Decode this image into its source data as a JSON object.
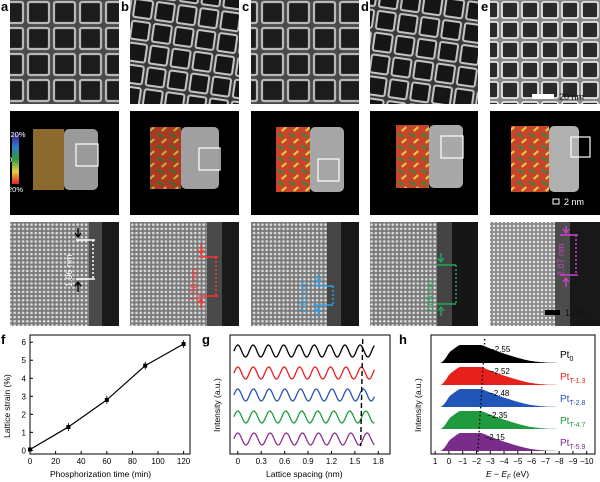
{
  "panel_labels": [
    "a",
    "b",
    "c",
    "d",
    "e",
    "f",
    "g",
    "h"
  ],
  "row1_scalebar": "20 nm",
  "row2_scalebar": "2 nm",
  "row3_scalebar": "1 nm",
  "strain_colorbar": {
    "top": "-20%",
    "mid": "0",
    "bottom": "20%"
  },
  "spacing_labels": [
    {
      "text": "1.96 nm",
      "color": "#ffffff"
    },
    {
      "text": "1.98 nm",
      "color": "#ff3030"
    },
    {
      "text": "2.01 nm",
      "color": "#2aa0f0"
    },
    {
      "text": "2.05 nm",
      "color": "#22aa55"
    },
    {
      "text": "2.07 nm",
      "color": "#cc44cc"
    }
  ],
  "chart_data": [
    {
      "type": "line",
      "panel": "f",
      "xlabel": "Phosphorization time (min)",
      "ylabel": "Lattice strain (%)",
      "x": [
        0,
        30,
        60,
        90,
        120
      ],
      "y": [
        0.05,
        1.3,
        2.8,
        4.7,
        5.9
      ],
      "xticks": [
        "0",
        "20",
        "40",
        "60",
        "80",
        "100",
        "120"
      ],
      "yticks": [
        "0",
        "1",
        "2",
        "3",
        "4",
        "5",
        "6"
      ],
      "xlim": [
        0,
        125
      ],
      "ylim": [
        -0.2,
        6.4
      ]
    },
    {
      "type": "line",
      "panel": "g",
      "xlabel": "Lattice spacing (nm)",
      "ylabel": "Intensity (a.u.)",
      "xticks": [
        "0",
        "0.3",
        "0.6",
        "0.9",
        "1.2",
        "1.5",
        "1.8"
      ],
      "xlim": [
        -0.1,
        1.95
      ],
      "dashed_line_x": 1.6,
      "series": [
        {
          "color": "#000000",
          "period": 0.196
        },
        {
          "color": "#e8201c",
          "period": 0.198
        },
        {
          "color": "#2255b8",
          "period": 0.201
        },
        {
          "color": "#1f9a3f",
          "period": 0.205
        },
        {
          "color": "#8e2f90",
          "period": 0.207
        }
      ]
    },
    {
      "type": "area",
      "panel": "h",
      "xlabel": "E − E",
      "xlabel_sub": "F",
      "xlabel_unit": " (eV)",
      "ylabel": "Intensity (a.u.)",
      "xticks": [
        "1",
        "0",
        "−1",
        "−2",
        "−3",
        "−4",
        "−5",
        "−6",
        "−7",
        "−8",
        "−9",
        "−10"
      ],
      "xlim": [
        1.3,
        -10.6
      ],
      "series": [
        {
          "name": "Pt",
          "sub": "0",
          "color": "#000000",
          "d_band_center": -2.55,
          "label": "−2.55"
        },
        {
          "name": "Pt",
          "sub": "T-1.3",
          "color": "#e8201c",
          "d_band_center": -2.52,
          "label": "−2.52"
        },
        {
          "name": "Pt",
          "sub": "T-2.8",
          "color": "#2255b8",
          "d_band_center": -2.48,
          "label": "−2.48"
        },
        {
          "name": "Pt",
          "sub": "T-4.7",
          "color": "#1f9a3f",
          "d_band_center": -2.35,
          "label": "−2.35"
        },
        {
          "name": "Pt",
          "sub": "T-5.9",
          "color": "#7a2c8a",
          "d_band_center": -2.15,
          "label": "−2.15"
        }
      ]
    }
  ]
}
